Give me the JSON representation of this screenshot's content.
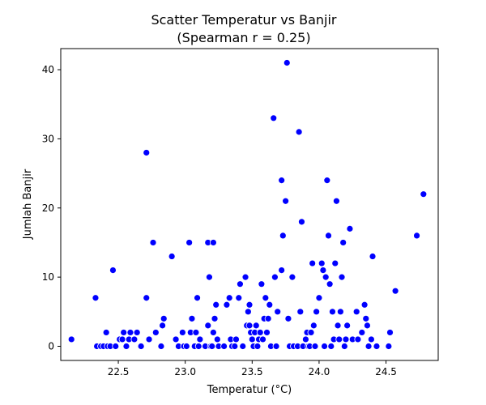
{
  "chart_data": {
    "type": "scatter",
    "title": "Scatter Temperatur vs Banjir",
    "subtitle": "(Spearman r = 0.25)",
    "xlabel": "Temperatur (°C)",
    "ylabel": "Jumlah Banjir",
    "xlim": [
      22.07,
      24.89
    ],
    "ylim": [
      -2.05,
      43.05
    ],
    "xticks": [
      22.5,
      23.0,
      23.5,
      24.0,
      24.5
    ],
    "xtick_labels": [
      "22.5",
      "23.0",
      "23.5",
      "24.0",
      "24.5"
    ],
    "yticks": [
      0,
      10,
      20,
      30,
      40
    ],
    "ytick_labels": [
      "0",
      "10",
      "20",
      "30",
      "40"
    ],
    "grid": false,
    "point_color": "#0000ff",
    "series": [
      {
        "points": [
          [
            22.15,
            1
          ],
          [
            22.33,
            7
          ],
          [
            22.34,
            0
          ],
          [
            22.37,
            0
          ],
          [
            22.39,
            0
          ],
          [
            22.41,
            2
          ],
          [
            22.42,
            0
          ],
          [
            22.44,
            0
          ],
          [
            22.46,
            11
          ],
          [
            22.48,
            0
          ],
          [
            22.51,
            1
          ],
          [
            22.53,
            1
          ],
          [
            22.54,
            2
          ],
          [
            22.56,
            0
          ],
          [
            22.58,
            1
          ],
          [
            22.59,
            2
          ],
          [
            22.62,
            1
          ],
          [
            22.64,
            2
          ],
          [
            22.67,
            0
          ],
          [
            22.71,
            28
          ],
          [
            22.71,
            7
          ],
          [
            22.73,
            1
          ],
          [
            22.76,
            15
          ],
          [
            22.78,
            2
          ],
          [
            22.82,
            0
          ],
          [
            22.83,
            3
          ],
          [
            22.84,
            4
          ],
          [
            22.9,
            13
          ],
          [
            22.93,
            1
          ],
          [
            22.95,
            0
          ],
          [
            22.98,
            2
          ],
          [
            22.99,
            0
          ],
          [
            23.01,
            0
          ],
          [
            23.03,
            15
          ],
          [
            23.04,
            2
          ],
          [
            23.05,
            4
          ],
          [
            23.07,
            0
          ],
          [
            23.08,
            2
          ],
          [
            23.09,
            7
          ],
          [
            23.1,
            0
          ],
          [
            23.11,
            1
          ],
          [
            23.15,
            0
          ],
          [
            23.17,
            3
          ],
          [
            23.17,
            15
          ],
          [
            23.18,
            10
          ],
          [
            23.19,
            0
          ],
          [
            23.2,
            0
          ],
          [
            23.21,
            15
          ],
          [
            23.21,
            2
          ],
          [
            23.22,
            4
          ],
          [
            23.23,
            6
          ],
          [
            23.24,
            1
          ],
          [
            23.25,
            0
          ],
          [
            23.29,
            0
          ],
          [
            23.31,
            6
          ],
          [
            23.33,
            7
          ],
          [
            23.34,
            1
          ],
          [
            23.35,
            0
          ],
          [
            23.37,
            0
          ],
          [
            23.38,
            1
          ],
          [
            23.4,
            7
          ],
          [
            23.41,
            9
          ],
          [
            23.43,
            0
          ],
          [
            23.45,
            10
          ],
          [
            23.46,
            3
          ],
          [
            23.47,
            5
          ],
          [
            23.48,
            6
          ],
          [
            23.48,
            3
          ],
          [
            23.49,
            2
          ],
          [
            23.5,
            1
          ],
          [
            23.51,
            0
          ],
          [
            23.52,
            2
          ],
          [
            23.53,
            3
          ],
          [
            23.54,
            0
          ],
          [
            23.55,
            1
          ],
          [
            23.56,
            2
          ],
          [
            23.57,
            9
          ],
          [
            23.58,
            1
          ],
          [
            23.59,
            4
          ],
          [
            23.6,
            7
          ],
          [
            23.61,
            2
          ],
          [
            23.62,
            4
          ],
          [
            23.63,
            6
          ],
          [
            23.64,
            0
          ],
          [
            23.66,
            33
          ],
          [
            23.67,
            10
          ],
          [
            23.68,
            0
          ],
          [
            23.69,
            5
          ],
          [
            23.72,
            24
          ],
          [
            23.72,
            11
          ],
          [
            23.73,
            16
          ],
          [
            23.75,
            21
          ],
          [
            23.76,
            41
          ],
          [
            23.77,
            4
          ],
          [
            23.78,
            0
          ],
          [
            23.8,
            10
          ],
          [
            23.81,
            0
          ],
          [
            23.84,
            0
          ],
          [
            23.85,
            31
          ],
          [
            23.86,
            5
          ],
          [
            23.87,
            18
          ],
          [
            23.88,
            0
          ],
          [
            23.9,
            1
          ],
          [
            23.91,
            2
          ],
          [
            23.92,
            0
          ],
          [
            23.93,
            0
          ],
          [
            23.94,
            2
          ],
          [
            23.95,
            12
          ],
          [
            23.96,
            3
          ],
          [
            23.97,
            0
          ],
          [
            23.98,
            5
          ],
          [
            24.0,
            7
          ],
          [
            24.02,
            12
          ],
          [
            24.03,
            11
          ],
          [
            24.04,
            0
          ],
          [
            24.05,
            10
          ],
          [
            24.06,
            24
          ],
          [
            24.07,
            16
          ],
          [
            24.08,
            9
          ],
          [
            24.09,
            0
          ],
          [
            24.1,
            5
          ],
          [
            24.11,
            1
          ],
          [
            24.12,
            12
          ],
          [
            24.13,
            21
          ],
          [
            24.14,
            3
          ],
          [
            24.15,
            1
          ],
          [
            24.16,
            5
          ],
          [
            24.17,
            10
          ],
          [
            24.18,
            15
          ],
          [
            24.19,
            0
          ],
          [
            24.2,
            1
          ],
          [
            24.21,
            3
          ],
          [
            24.23,
            17
          ],
          [
            24.25,
            1
          ],
          [
            24.28,
            5
          ],
          [
            24.29,
            1
          ],
          [
            24.32,
            2
          ],
          [
            24.34,
            6
          ],
          [
            24.35,
            4
          ],
          [
            24.36,
            3
          ],
          [
            24.37,
            0
          ],
          [
            24.39,
            1
          ],
          [
            24.4,
            13
          ],
          [
            24.43,
            0
          ],
          [
            24.52,
            0
          ],
          [
            24.53,
            2
          ],
          [
            24.57,
            8
          ],
          [
            24.73,
            16
          ],
          [
            24.78,
            22
          ]
        ]
      }
    ]
  }
}
